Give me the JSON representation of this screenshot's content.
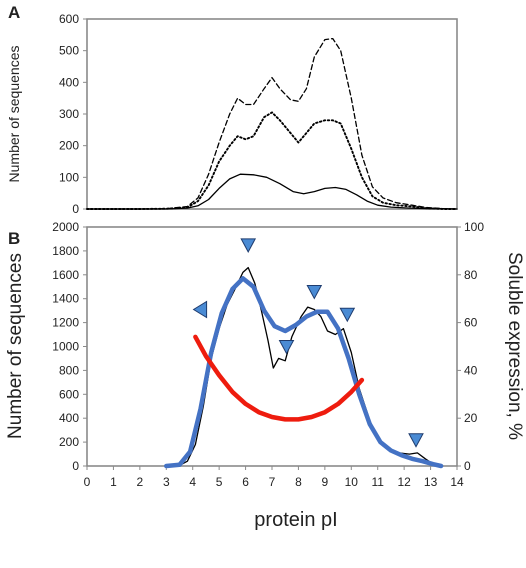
{
  "chart_data": [
    {
      "panel_label": "A",
      "type": "line",
      "ylabel": "Number of sequences",
      "ylim": [
        0,
        600
      ],
      "xlim": [
        0,
        14
      ],
      "yticks": [
        0,
        100,
        200,
        300,
        400,
        500,
        600
      ],
      "grid": false,
      "legend": "none",
      "series": [
        {
          "style": "dashed",
          "color": "#000000",
          "points": [
            [
              0,
              0
            ],
            [
              2,
              0
            ],
            [
              3,
              1
            ],
            [
              3.8,
              8
            ],
            [
              4.2,
              35
            ],
            [
              4.6,
              110
            ],
            [
              5,
              210
            ],
            [
              5.4,
              300
            ],
            [
              5.7,
              350
            ],
            [
              6,
              330
            ],
            [
              6.3,
              330
            ],
            [
              6.7,
              380
            ],
            [
              7,
              415
            ],
            [
              7.3,
              380
            ],
            [
              7.7,
              345
            ],
            [
              8,
              340
            ],
            [
              8.3,
              380
            ],
            [
              8.6,
              480
            ],
            [
              9,
              535
            ],
            [
              9.3,
              538
            ],
            [
              9.6,
              500
            ],
            [
              10,
              350
            ],
            [
              10.4,
              170
            ],
            [
              10.8,
              70
            ],
            [
              11.2,
              35
            ],
            [
              11.7,
              20
            ],
            [
              12.3,
              12
            ],
            [
              12.8,
              5
            ],
            [
              13.5,
              1
            ],
            [
              14,
              0
            ]
          ]
        },
        {
          "style": "dotted",
          "color": "#000000",
          "points": [
            [
              0,
              0
            ],
            [
              2,
              0
            ],
            [
              3,
              1
            ],
            [
              3.8,
              5
            ],
            [
              4.2,
              25
            ],
            [
              4.6,
              75
            ],
            [
              5,
              150
            ],
            [
              5.4,
              200
            ],
            [
              5.7,
              230
            ],
            [
              6,
              220
            ],
            [
              6.3,
              230
            ],
            [
              6.7,
              290
            ],
            [
              7,
              305
            ],
            [
              7.3,
              280
            ],
            [
              7.7,
              240
            ],
            [
              8,
              210
            ],
            [
              8.3,
              240
            ],
            [
              8.6,
              270
            ],
            [
              9,
              280
            ],
            [
              9.3,
              280
            ],
            [
              9.6,
              270
            ],
            [
              10,
              190
            ],
            [
              10.4,
              100
            ],
            [
              10.8,
              40
            ],
            [
              11.2,
              20
            ],
            [
              11.7,
              12
            ],
            [
              12.3,
              8
            ],
            [
              12.8,
              3
            ],
            [
              13.5,
              0
            ],
            [
              14,
              0
            ]
          ]
        },
        {
          "style": "solid",
          "color": "#000000",
          "points": [
            [
              0,
              0
            ],
            [
              2,
              0
            ],
            [
              3,
              0
            ],
            [
              3.8,
              3
            ],
            [
              4.2,
              10
            ],
            [
              4.6,
              30
            ],
            [
              5,
              65
            ],
            [
              5.4,
              95
            ],
            [
              5.8,
              110
            ],
            [
              6.3,
              108
            ],
            [
              6.8,
              100
            ],
            [
              7.3,
              80
            ],
            [
              7.8,
              55
            ],
            [
              8.2,
              48
            ],
            [
              8.6,
              55
            ],
            [
              9,
              65
            ],
            [
              9.4,
              68
            ],
            [
              9.8,
              62
            ],
            [
              10.2,
              45
            ],
            [
              10.6,
              25
            ],
            [
              11,
              12
            ],
            [
              11.5,
              6
            ],
            [
              12.2,
              3
            ],
            [
              13,
              1
            ],
            [
              14,
              0
            ]
          ]
        }
      ]
    },
    {
      "panel_label": "B",
      "type": "line",
      "xlabel": "protein pI",
      "ylabel": "Number of sequences",
      "y2label": "Soluble expression, %",
      "xlim": [
        0,
        14
      ],
      "ylim": [
        0,
        2000
      ],
      "y2lim": [
        0,
        100
      ],
      "xticks": [
        0,
        1,
        2,
        3,
        4,
        5,
        6,
        7,
        8,
        9,
        10,
        11,
        12,
        13,
        14
      ],
      "yticks": [
        0,
        200,
        400,
        600,
        800,
        1000,
        1200,
        1400,
        1600,
        1800,
        2000
      ],
      "y2ticks": [
        0,
        20,
        40,
        60,
        80,
        100
      ],
      "grid": false,
      "legend": "none",
      "series": [
        {
          "style": "solid",
          "color": "#000000",
          "axis": "left",
          "points": [
            [
              3,
              0
            ],
            [
              3.5,
              5
            ],
            [
              3.8,
              40
            ],
            [
              4.1,
              180
            ],
            [
              4.4,
              500
            ],
            [
              4.7,
              900
            ],
            [
              5,
              1150
            ],
            [
              5.3,
              1350
            ],
            [
              5.6,
              1480
            ],
            [
              5.9,
              1620
            ],
            [
              6.1,
              1660
            ],
            [
              6.35,
              1530
            ],
            [
              6.6,
              1300
            ],
            [
              6.85,
              1050
            ],
            [
              7.05,
              820
            ],
            [
              7.25,
              900
            ],
            [
              7.5,
              880
            ],
            [
              7.75,
              1080
            ],
            [
              8.1,
              1250
            ],
            [
              8.35,
              1330
            ],
            [
              8.6,
              1310
            ],
            [
              8.85,
              1250
            ],
            [
              9.1,
              1130
            ],
            [
              9.4,
              1100
            ],
            [
              9.7,
              1150
            ],
            [
              10,
              950
            ],
            [
              10.3,
              650
            ],
            [
              10.7,
              380
            ],
            [
              11,
              230
            ],
            [
              11.4,
              150
            ],
            [
              11.8,
              110
            ],
            [
              12.2,
              100
            ],
            [
              12.5,
              110
            ],
            [
              12.8,
              60
            ],
            [
              13.1,
              15
            ],
            [
              13.4,
              0
            ]
          ]
        },
        {
          "style": "solid-thick",
          "color": "#4472c4",
          "axis": "left",
          "points": [
            [
              3,
              0
            ],
            [
              3.5,
              10
            ],
            [
              3.9,
              120
            ],
            [
              4.3,
              480
            ],
            [
              4.7,
              950
            ],
            [
              5.1,
              1280
            ],
            [
              5.5,
              1480
            ],
            [
              5.9,
              1570
            ],
            [
              6.3,
              1500
            ],
            [
              6.7,
              1300
            ],
            [
              7.1,
              1170
            ],
            [
              7.5,
              1130
            ],
            [
              7.9,
              1180
            ],
            [
              8.3,
              1250
            ],
            [
              8.7,
              1290
            ],
            [
              9.1,
              1290
            ],
            [
              9.5,
              1150
            ],
            [
              9.9,
              900
            ],
            [
              10.3,
              600
            ],
            [
              10.7,
              350
            ],
            [
              11.1,
              200
            ],
            [
              11.5,
              130
            ],
            [
              11.9,
              90
            ],
            [
              12.3,
              60
            ],
            [
              12.7,
              40
            ],
            [
              13.1,
              15
            ],
            [
              13.4,
              0
            ]
          ]
        },
        {
          "style": "solid-thick",
          "color": "#ee1c0e",
          "axis": "right",
          "points": [
            [
              4.1,
              54
            ],
            [
              4.5,
              46
            ],
            [
              5,
              38
            ],
            [
              5.5,
              31
            ],
            [
              6,
              26
            ],
            [
              6.5,
              22.5
            ],
            [
              7,
              20.5
            ],
            [
              7.5,
              19.5
            ],
            [
              8,
              19.5
            ],
            [
              8.5,
              20.5
            ],
            [
              9,
              22.5
            ],
            [
              9.5,
              26
            ],
            [
              10,
              31
            ],
            [
              10.4,
              36
            ]
          ]
        }
      ],
      "markers": {
        "color": "#4a8bd4",
        "items": [
          {
            "direction": "down",
            "x": 6.1,
            "y": 1850
          },
          {
            "direction": "down",
            "x": 7.55,
            "y": 1000
          },
          {
            "direction": "down",
            "x": 8.6,
            "y": 1460
          },
          {
            "direction": "down",
            "x": 9.85,
            "y": 1270
          },
          {
            "direction": "down",
            "x": 12.45,
            "y": 220
          },
          {
            "direction": "left",
            "x": 4.3,
            "y": 1310
          }
        ]
      }
    }
  ]
}
